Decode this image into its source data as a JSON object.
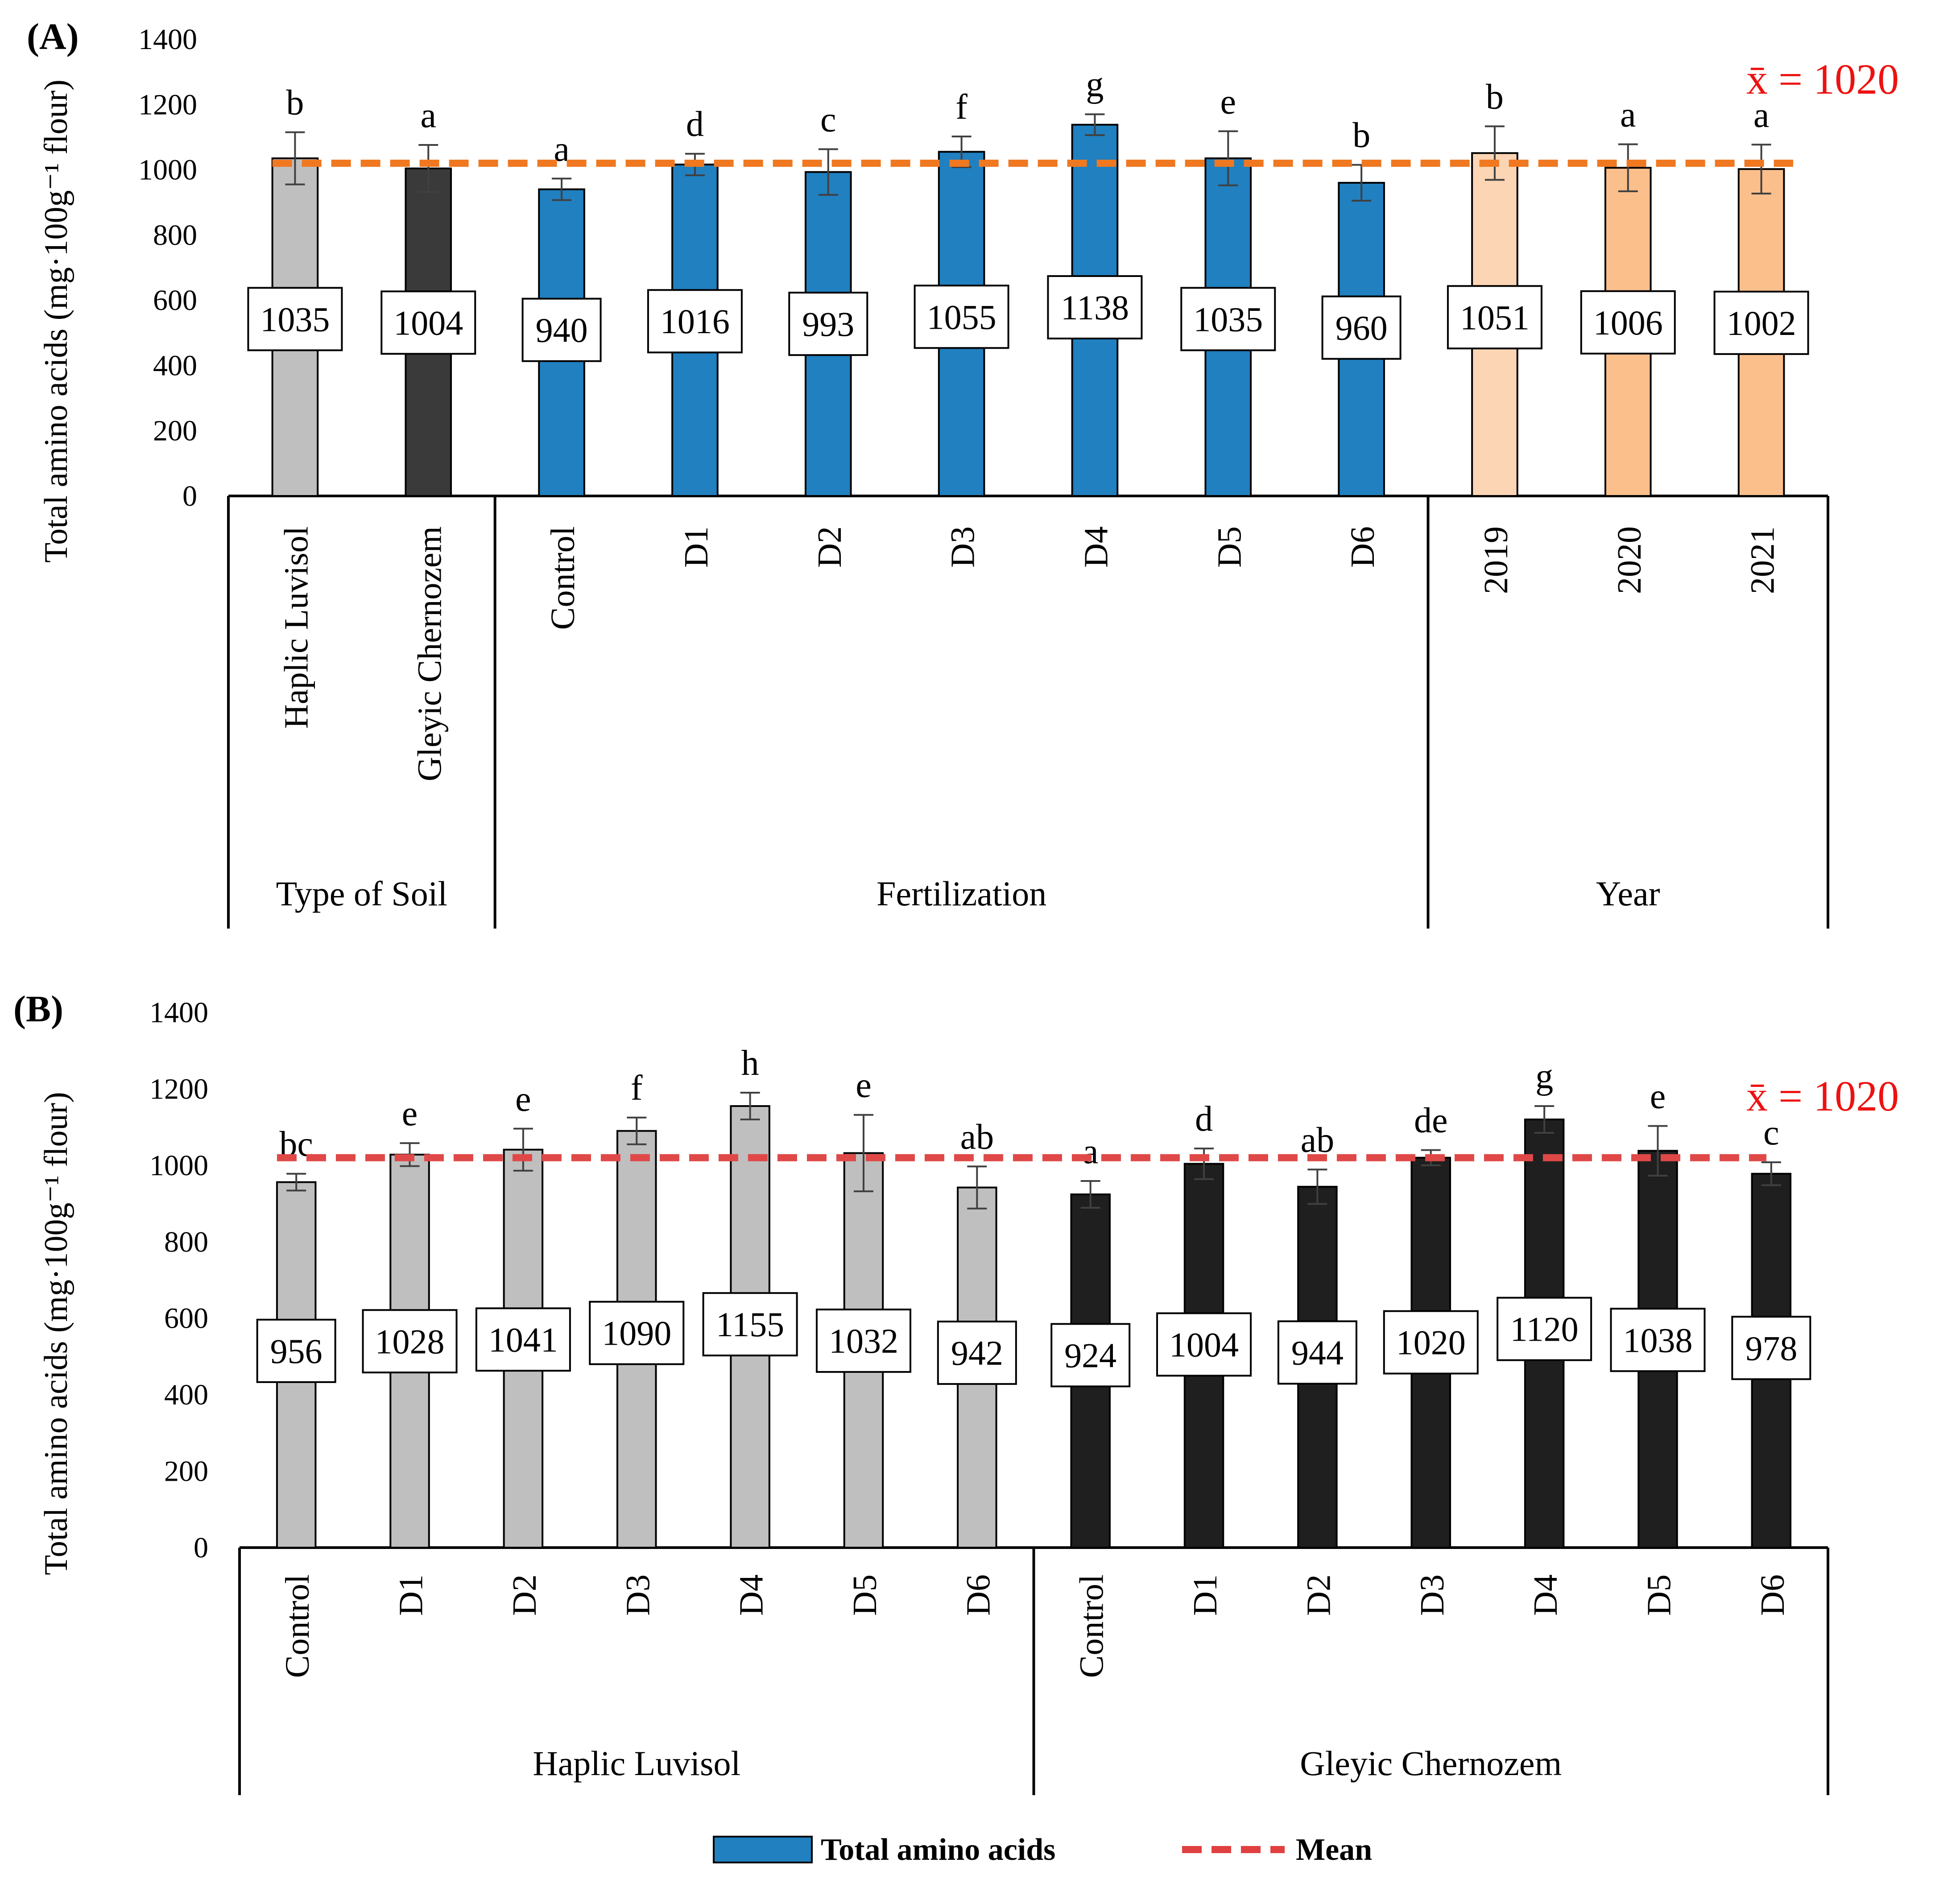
{
  "chart_data": [
    {
      "type": "bar",
      "panel": "(A)",
      "ylabel": "Total amino acids (mg·100g⁻¹ flour)",
      "ylim": [
        0,
        1400
      ],
      "yticks": [
        "0",
        "200",
        "400",
        "600",
        "800",
        "1000",
        "1200",
        "1400"
      ],
      "mean": 1020,
      "mean_label": "x̄ = 1020",
      "groups": [
        {
          "name": "Type of Soil",
          "categories": [
            "Haplic Luvisol",
            "Gleyic Chernozem"
          ],
          "values": [
            1035,
            1004
          ],
          "errors": [
            80,
            72
          ],
          "letters": [
            "b",
            "a"
          ],
          "colors": [
            "#bfbfbf",
            "#3a3a3a"
          ]
        },
        {
          "name": "Fertilization",
          "categories": [
            "Control",
            "D1",
            "D2",
            "D3",
            "D4",
            "D5",
            "D6"
          ],
          "values": [
            940,
            1016,
            993,
            1055,
            1138,
            1035,
            960
          ],
          "errors": [
            33,
            33,
            70,
            47,
            32,
            83,
            55
          ],
          "letters": [
            "a",
            "d",
            "c",
            "f",
            "g",
            "e",
            "b"
          ],
          "colors": [
            "#2080c0",
            "#2080c0",
            "#2080c0",
            "#2080c0",
            "#2080c0",
            "#2080c0",
            "#2080c0"
          ]
        },
        {
          "name": "Year",
          "categories": [
            "2019",
            "2020",
            "2021"
          ],
          "values": [
            1051,
            1006,
            1002
          ],
          "errors": [
            82,
            72,
            75
          ],
          "letters": [
            "b",
            "a",
            "a"
          ],
          "colors": [
            "#fcd5b4",
            "#fbbf8c",
            "#fbbf8c"
          ]
        }
      ]
    },
    {
      "type": "bar",
      "panel": "(B)",
      "ylabel": "Total amino acids (mg·100g⁻¹ flour)",
      "ylim": [
        0,
        1400
      ],
      "yticks": [
        "0",
        "200",
        "400",
        "600",
        "800",
        "1000",
        "1200",
        "1400"
      ],
      "mean": 1020,
      "mean_label": "x̄ = 1020",
      "groups": [
        {
          "name": "Haplic Luvisol",
          "categories": [
            "Control",
            "D1",
            "D2",
            "D3",
            "D4",
            "D5",
            "D6"
          ],
          "values": [
            956,
            1028,
            1041,
            1090,
            1155,
            1032,
            942
          ],
          "errors": [
            22,
            30,
            55,
            35,
            35,
            100,
            55
          ],
          "letters": [
            "bc",
            "e",
            "e",
            "f",
            "h",
            "e",
            "ab"
          ],
          "colors": [
            "#bfbfbf",
            "#bfbfbf",
            "#bfbfbf",
            "#bfbfbf",
            "#bfbfbf",
            "#bfbfbf",
            "#bfbfbf"
          ]
        },
        {
          "name": "Gleyic Chernozem",
          "categories": [
            "Control",
            "D1",
            "D2",
            "D3",
            "D4",
            "D5",
            "D6"
          ],
          "values": [
            924,
            1004,
            944,
            1020,
            1120,
            1038,
            978
          ],
          "errors": [
            35,
            40,
            45,
            20,
            35,
            65,
            30
          ],
          "letters": [
            "a",
            "d",
            "ab",
            "de",
            "g",
            "e",
            "c"
          ],
          "colors": [
            "#1f1f1f",
            "#1f1f1f",
            "#1f1f1f",
            "#1f1f1f",
            "#1f1f1f",
            "#1f1f1f",
            "#1f1f1f"
          ]
        }
      ]
    }
  ],
  "legend": {
    "bar_label": "Total amino acids",
    "mean_label": "Mean",
    "bar_color": "#2080c0",
    "mean_color": "#e04040"
  },
  "colors": {
    "mean_line_a": "#f07820",
    "mean_line_b": "#e04848",
    "mean_text": "#ee1111",
    "error_bar": "#404040"
  }
}
